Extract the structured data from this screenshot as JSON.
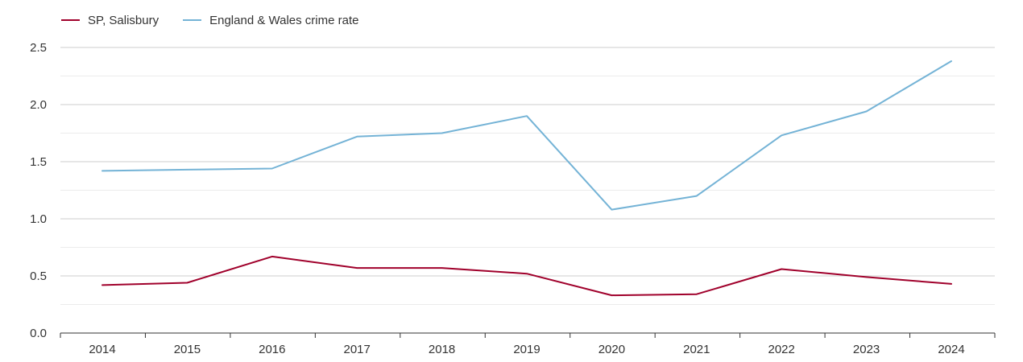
{
  "legend": {
    "series_0": "SP, Salisbury",
    "series_1": "England & Wales crime rate"
  },
  "chart_data": {
    "type": "line",
    "x": [
      "2014",
      "2015",
      "2016",
      "2017",
      "2018",
      "2019",
      "2020",
      "2021",
      "2022",
      "2023",
      "2024"
    ],
    "series": [
      {
        "name": "SP, Salisbury",
        "color": "#a0002b",
        "values": [
          0.42,
          0.44,
          0.67,
          0.57,
          0.57,
          0.52,
          0.33,
          0.34,
          0.56,
          0.49,
          0.43
        ]
      },
      {
        "name": "England & Wales crime rate",
        "color": "#74b3d6",
        "values": [
          1.42,
          1.43,
          1.44,
          1.72,
          1.75,
          1.9,
          1.08,
          1.2,
          1.73,
          1.94,
          2.38
        ]
      }
    ],
    "yticks": [
      "0.0",
      "0.5",
      "1.0",
      "1.5",
      "2.0",
      "2.5"
    ],
    "ylim": [
      0,
      2.5
    ],
    "grid": true,
    "legend_position": "top-left",
    "title": "",
    "xlabel": "",
    "ylabel": ""
  }
}
